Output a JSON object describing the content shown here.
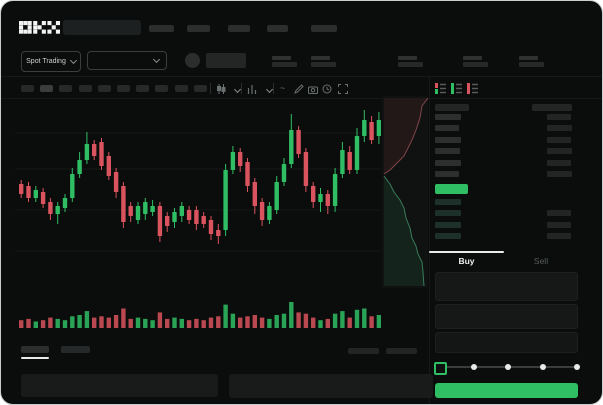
{
  "app": {
    "logo": "OKX"
  },
  "theme": {
    "background": "#0b0d0c",
    "accent_green": "#2fbe63",
    "accent_red": "#d9545e",
    "highlight": "#e9ebeb"
  },
  "header": {
    "market_selector": {
      "label": "Spot Trading"
    },
    "search": {
      "placeholder": ""
    },
    "nav_placeholder_count": 5,
    "stats_placeholder_count": 5
  },
  "toolbar": {
    "interval_placeholder_count": 10,
    "active_interval_index": 1,
    "icons": [
      "candle-style",
      "chevron-down",
      "indicator-bars",
      "chevron-down",
      "curve",
      "draw-pencil",
      "camera",
      "settings-clock",
      "fullscreen"
    ]
  },
  "orderbook": {
    "view_icons": [
      "book-combined",
      "book-bids-only",
      "book-asks-only"
    ],
    "ask_row_count": 6,
    "bid_row_count": 4,
    "last_price_highlight_color": "#2fbe63"
  },
  "trade_panel": {
    "tabs": [
      {
        "label": "Buy",
        "active": true
      },
      {
        "label": "Sell",
        "active": false
      }
    ],
    "amount_slider": {
      "stop_count": 5,
      "selected_stop_index": 0
    },
    "submit_button_color": "#2fbe63"
  },
  "chart_data": {
    "type": "candlestick",
    "title": "",
    "xlabel": "",
    "ylabel": "",
    "note": "No axis tick labels are visible in the screenshot; OHLC values are relative levels 0-100 estimated from pixels (100 = chart top). Volumes are relative 0-100.",
    "colors": {
      "up": "#2fbe63",
      "down": "#d9545e"
    },
    "grid": true,
    "candles_ohlc": [
      [
        56,
        58,
        49,
        51
      ],
      [
        55,
        57,
        47,
        49
      ],
      [
        49,
        55,
        47,
        53
      ],
      [
        52,
        54,
        44,
        46
      ],
      [
        47,
        49,
        38,
        41
      ],
      [
        41,
        47,
        36,
        45
      ],
      [
        44,
        51,
        42,
        49
      ],
      [
        49,
        64,
        47,
        61
      ],
      [
        61,
        72,
        59,
        68
      ],
      [
        68,
        82,
        66,
        76
      ],
      [
        76,
        78,
        68,
        70
      ],
      [
        77,
        79,
        63,
        65
      ],
      [
        70,
        72,
        58,
        60
      ],
      [
        62,
        64,
        49,
        52
      ],
      [
        55,
        57,
        34,
        37
      ],
      [
        45,
        47,
        37,
        40
      ],
      [
        38,
        47,
        36,
        45
      ],
      [
        41,
        49,
        38,
        47
      ],
      [
        42,
        48,
        40,
        45
      ],
      [
        45,
        47,
        27,
        30
      ],
      [
        40,
        42,
        32,
        35
      ],
      [
        37,
        44,
        34,
        42
      ],
      [
        40,
        47,
        37,
        45
      ],
      [
        43,
        45,
        36,
        38
      ],
      [
        43,
        45,
        33,
        36
      ],
      [
        40,
        42,
        34,
        36
      ],
      [
        38,
        40,
        28,
        31
      ],
      [
        33,
        36,
        26,
        30
      ],
      [
        33,
        66,
        30,
        63
      ],
      [
        63,
        75,
        61,
        72
      ],
      [
        72,
        74,
        62,
        65
      ],
      [
        67,
        69,
        52,
        55
      ],
      [
        57,
        59,
        41,
        45
      ],
      [
        47,
        49,
        35,
        38
      ],
      [
        38,
        47,
        36,
        45
      ],
      [
        43,
        60,
        41,
        57
      ],
      [
        57,
        69,
        55,
        66
      ],
      [
        66,
        91,
        64,
        83
      ],
      [
        83,
        85,
        69,
        71
      ],
      [
        72,
        74,
        52,
        55
      ],
      [
        55,
        57,
        44,
        47
      ],
      [
        47,
        54,
        42,
        51
      ],
      [
        51,
        53,
        41,
        45
      ],
      [
        45,
        64,
        42,
        61
      ],
      [
        61,
        77,
        59,
        73
      ],
      [
        72,
        75,
        61,
        63
      ],
      [
        63,
        84,
        61,
        80
      ],
      [
        80,
        93,
        77,
        88
      ],
      [
        87,
        90,
        76,
        78
      ],
      [
        80,
        92,
        76,
        88
      ]
    ],
    "volumes": [
      30,
      35,
      25,
      30,
      40,
      35,
      30,
      45,
      50,
      65,
      40,
      45,
      40,
      50,
      75,
      35,
      40,
      35,
      30,
      60,
      35,
      40,
      35,
      30,
      35,
      30,
      40,
      45,
      90,
      55,
      40,
      45,
      50,
      40,
      35,
      50,
      55,
      100,
      60,
      55,
      40,
      30,
      35,
      55,
      65,
      40,
      70,
      75,
      45,
      50
    ],
    "depth_preview": {
      "asks_line": [
        [
          46,
          2
        ],
        [
          40,
          10
        ],
        [
          38,
          22
        ],
        [
          34,
          34
        ],
        [
          30,
          44
        ],
        [
          26,
          52
        ],
        [
          22,
          60
        ],
        [
          14,
          68
        ],
        [
          8,
          74
        ],
        [
          2,
          78
        ]
      ],
      "bids_line": [
        [
          2,
          80
        ],
        [
          8,
          88
        ],
        [
          12,
          96
        ],
        [
          18,
          104
        ],
        [
          22,
          112
        ],
        [
          24,
          122
        ],
        [
          28,
          132
        ],
        [
          30,
          142
        ],
        [
          34,
          150
        ],
        [
          36,
          158
        ],
        [
          40,
          166
        ],
        [
          41,
          176
        ],
        [
          42,
          190
        ]
      ]
    }
  }
}
